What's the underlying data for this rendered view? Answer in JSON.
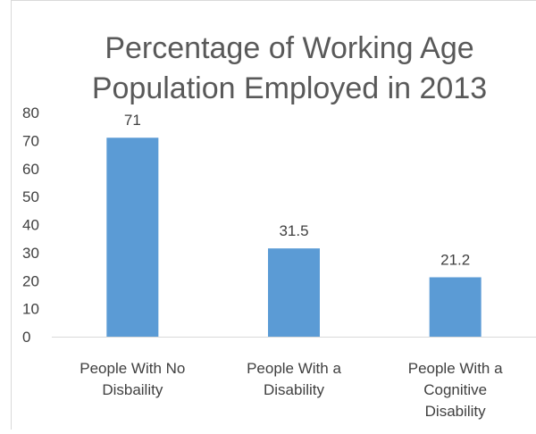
{
  "chart_data": {
    "type": "bar",
    "title_lines": [
      "Percentage of Working Age",
      "Population Employed in 2013"
    ],
    "categories": [
      [
        "People With No",
        "Disbaility"
      ],
      [
        "People With a",
        "Disability"
      ],
      [
        "People With a",
        "Cognitive",
        "Disability"
      ]
    ],
    "values": [
      71,
      31.5,
      21.2
    ],
    "data_labels": [
      "71",
      "31.5",
      "21.2"
    ],
    "ylim": [
      0,
      80
    ],
    "yticks": [
      0,
      10,
      20,
      30,
      40,
      50,
      60,
      70,
      80
    ],
    "grid": false,
    "legend": "none",
    "bar_color": "#5B9BD5"
  }
}
